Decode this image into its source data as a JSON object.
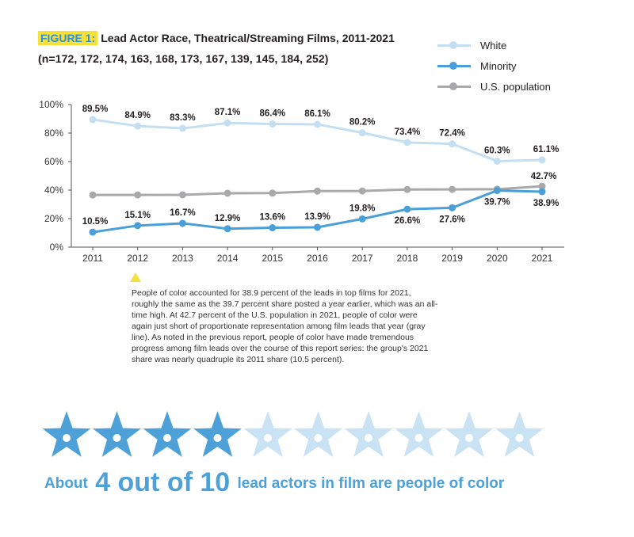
{
  "figure": {
    "tag": "FIGURE 1:",
    "title": "Lead Actor Race, Theatrical/Streaming Films, 2011-2021",
    "subtitle": "(n=172, 172, 174, 163, 168, 173, 167, 139, 145, 184, 252)"
  },
  "colors": {
    "white": "#c4dff2",
    "minority": "#4a9fd9",
    "us_population": "#a9a9ab",
    "highlight": "#f5e13a",
    "star_filled": "#4da1d8",
    "star_empty": "#c9e2f4"
  },
  "legend": [
    {
      "label": "White",
      "series": "white"
    },
    {
      "label": "Minority",
      "series": "minority"
    },
    {
      "label": "U.S. population",
      "series": "us_population"
    }
  ],
  "chart_data": {
    "type": "line",
    "x": [
      "2011",
      "2012",
      "2013",
      "2014",
      "2015",
      "2016",
      "2017",
      "2018",
      "2019",
      "2020",
      "2021"
    ],
    "ylim": [
      0,
      100
    ],
    "yticks": [
      "0%",
      "20%",
      "40%",
      "60%",
      "80%",
      "100%"
    ],
    "grid": false,
    "legend_position": "top-right",
    "series": [
      {
        "name": "White",
        "key": "white",
        "values": [
          89.5,
          84.9,
          83.3,
          87.1,
          86.4,
          86.1,
          80.2,
          73.4,
          72.4,
          60.3,
          61.1
        ],
        "labels": [
          "89.5%",
          "84.9%",
          "83.3%",
          "87.1%",
          "86.4%",
          "86.1%",
          "80.2%",
          "73.4%",
          "72.4%",
          "60.3%",
          "61.1%"
        ]
      },
      {
        "name": "Minority",
        "key": "minority",
        "values": [
          10.5,
          15.1,
          16.7,
          12.9,
          13.6,
          13.9,
          19.8,
          26.6,
          27.6,
          39.7,
          38.9
        ],
        "labels": [
          "10.5%",
          "15.1%",
          "16.7%",
          "12.9%",
          "13.6%",
          "13.9%",
          "19.8%",
          "26.6%",
          "27.6%",
          "39.7%",
          "38.9%"
        ]
      },
      {
        "name": "U.S. population",
        "key": "us_population",
        "values": [
          36.6,
          36.6,
          36.7,
          37.8,
          37.9,
          39.3,
          39.4,
          40.4,
          40.5,
          40.6,
          42.7
        ],
        "labels": [
          "",
          "",
          "",
          "",
          "",
          "",
          "",
          "",
          "",
          "",
          "42.7%"
        ]
      }
    ]
  },
  "note": "People of color accounted for 38.9 percent of the leads in top films for 2021, roughly the same as the 39.7 percent share posted a year earlier, which was an all-time high. At 42.7 percent of the U.S. population in 2021, people of color were again just short of proportionate representation among film leads that year (gray line). As noted in the previous report, people of color have made tremendous progress among film leads over the course of this report series: the group's 2021 share was nearly quadruple its 2011 share (10.5 percent).",
  "stars": {
    "total": 10,
    "filled": 4
  },
  "callout": {
    "prefix": "About",
    "number": "4 out of 10",
    "suffix": "lead actors in film are people of color"
  }
}
